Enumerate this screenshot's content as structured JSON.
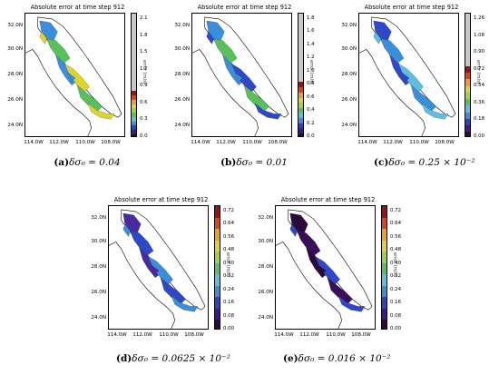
{
  "chart_data": [
    {
      "id": "a",
      "type": "heatmap",
      "title": "Absolute error at time step 912",
      "caption_label": "(a)",
      "caption_expr": "δσ₀ = 0.04",
      "x_ticks": [
        "114.0W",
        "112.0W",
        "110.0W",
        "108.0W"
      ],
      "y_ticks": [
        "32.0N",
        "30.0N",
        "28.0N",
        "26.0N",
        "24.0N"
      ],
      "colorbar_label": "error (m/s)",
      "colorbar_ticks": [
        "0.0",
        "0.3",
        "0.6",
        "0.9",
        "1.2",
        "1.5",
        "1.8",
        "2.1"
      ],
      "colorbar_range": [
        0,
        2.25
      ],
      "dominant_colors": [
        "#3b8ed9",
        "#59c05c",
        "#dcd430"
      ]
    },
    {
      "id": "b",
      "type": "heatmap",
      "title": "Absolute error at time step 912",
      "caption_label": "(b)",
      "caption_expr": "δσ₀ = 0.01",
      "x_ticks": [
        "114.0W",
        "112.0W",
        "110.0W",
        "108.0W"
      ],
      "y_ticks": [
        "32.0N",
        "30.0N",
        "28.0N",
        "26.0N",
        "24.0N"
      ],
      "colorbar_label": "error (m/s)",
      "colorbar_ticks": [
        "0.0",
        "0.2",
        "0.4",
        "0.6",
        "0.8",
        "1.0",
        "1.2",
        "1.4",
        "1.6",
        "1.8"
      ],
      "colorbar_range": [
        0,
        1.85
      ],
      "dominant_colors": [
        "#3b8ed9",
        "#59c05c",
        "#3047c8"
      ]
    },
    {
      "id": "c",
      "type": "heatmap",
      "title": "Absolute error at time step 912",
      "caption_label": "(c)",
      "caption_expr": "δσ₀ = 0.25 × 10⁻²",
      "x_ticks": [
        "114.0W",
        "112.0W",
        "110.0W",
        "108.0W"
      ],
      "y_ticks": [
        "32.0N",
        "30.0N",
        "28.0N",
        "26.0N",
        "24.0N"
      ],
      "colorbar_label": "error (m/s)",
      "colorbar_ticks": [
        "0.00",
        "0.18",
        "0.36",
        "0.54",
        "0.72",
        "0.90",
        "1.08",
        "1.26"
      ],
      "colorbar_range": [
        0,
        1.3
      ],
      "dominant_colors": [
        "#3047c8",
        "#3b8ed9",
        "#5fbde0"
      ]
    },
    {
      "id": "d",
      "type": "heatmap",
      "title": "Absolute error at time step 912",
      "caption_label": "(d)",
      "caption_expr": "δσ₀ = 0.0625 × 10⁻²",
      "x_ticks": [
        "114.0W",
        "112.0W",
        "110.0W",
        "108.0W"
      ],
      "y_ticks": [
        "32.0N",
        "30.0N",
        "28.0N",
        "26.0N",
        "24.0N"
      ],
      "colorbar_label": "error (m/s)",
      "colorbar_ticks": [
        "0.00",
        "0.08",
        "0.16",
        "0.24",
        "0.32",
        "0.40",
        "0.48",
        "0.56",
        "0.64",
        "0.72"
      ],
      "colorbar_range": [
        0,
        0.74
      ],
      "dominant_colors": [
        "#4a2aa0",
        "#3047c8",
        "#3b8ed9"
      ]
    },
    {
      "id": "e",
      "type": "heatmap",
      "title": "Absolute error at time step 912",
      "caption_label": "(e)",
      "caption_expr": "δσ₀ = 0.016 × 10⁻²",
      "x_ticks": [
        "114.0W",
        "112.0W",
        "110.0W",
        "108.0W"
      ],
      "y_ticks": [
        "32.0N",
        "30.0N",
        "28.0N",
        "26.0N",
        "24.0N"
      ],
      "colorbar_label": "error (m/s)",
      "colorbar_ticks": [
        "0.00",
        "0.08",
        "0.16",
        "0.24",
        "0.32",
        "0.40",
        "0.48",
        "0.56",
        "0.64",
        "0.72"
      ],
      "colorbar_range": [
        0,
        0.74
      ],
      "dominant_colors": [
        "#2a0a3a",
        "#3a0f5a",
        "#3047c8"
      ]
    }
  ]
}
